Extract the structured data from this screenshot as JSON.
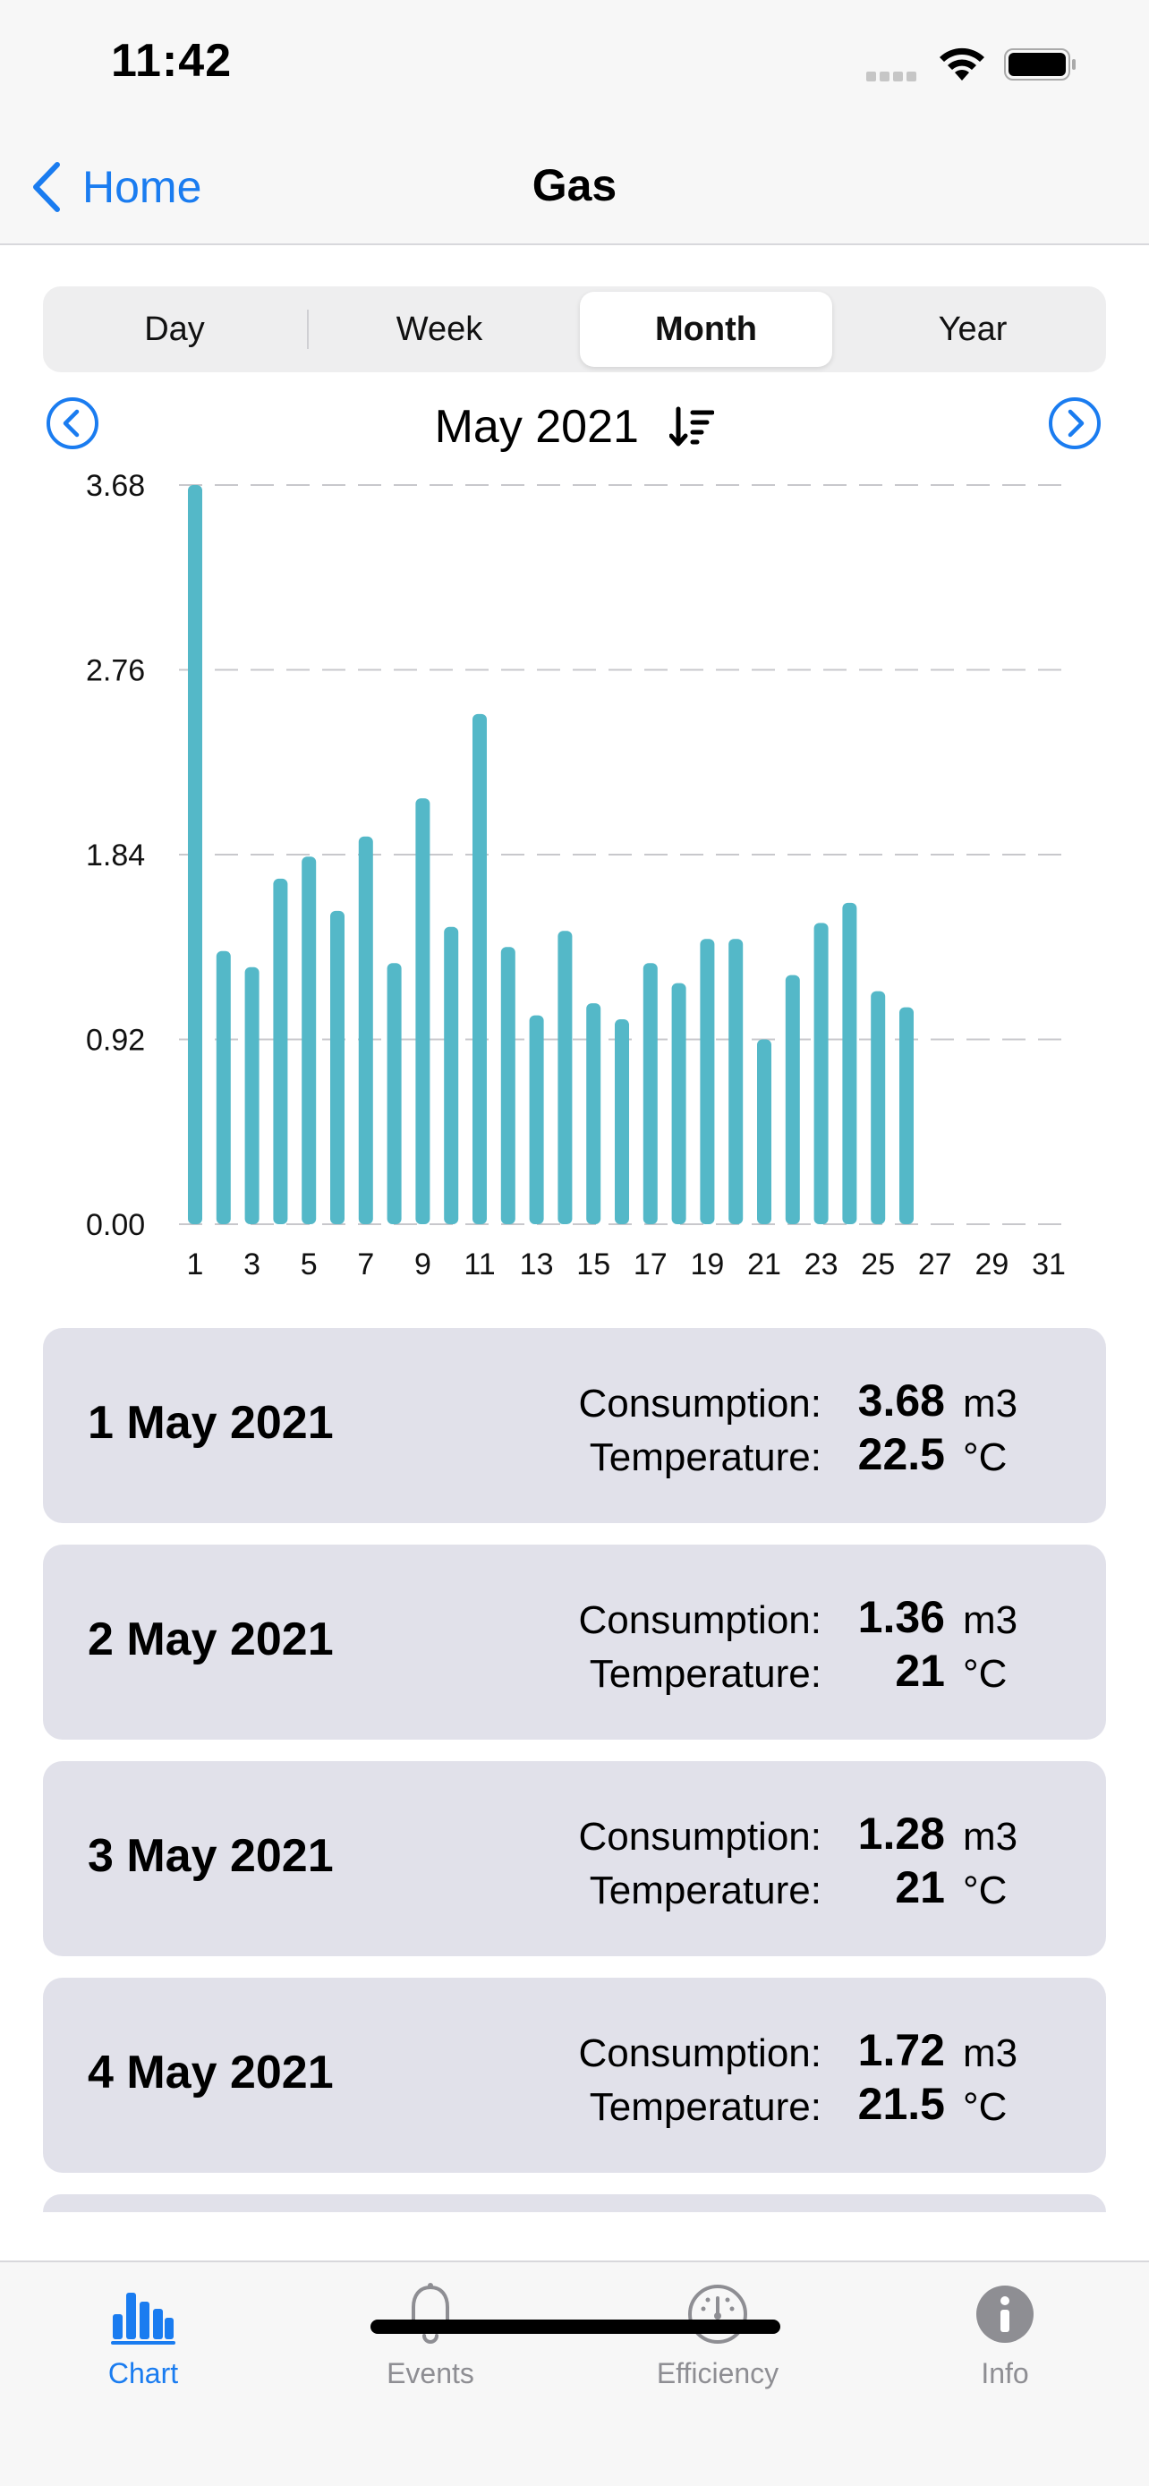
{
  "status_bar": {
    "time": "11:42"
  },
  "nav": {
    "back_label": "Home",
    "title": "Gas"
  },
  "segments": [
    {
      "label": "Day",
      "selected": false
    },
    {
      "label": "Week",
      "selected": false
    },
    {
      "label": "Month",
      "selected": true
    },
    {
      "label": "Year",
      "selected": false
    }
  ],
  "period": {
    "title": "May 2021"
  },
  "chart_data": {
    "type": "bar",
    "title": "",
    "xlabel": "",
    "ylabel": "",
    "x": [
      1,
      2,
      3,
      4,
      5,
      6,
      7,
      8,
      9,
      10,
      11,
      12,
      13,
      14,
      15,
      16,
      17,
      18,
      19,
      20,
      21,
      22,
      23,
      24,
      25,
      26,
      27,
      28,
      29,
      30,
      31
    ],
    "x_ticks": [
      1,
      3,
      5,
      7,
      9,
      11,
      13,
      15,
      17,
      19,
      21,
      23,
      25,
      27,
      29,
      31
    ],
    "y_ticks": [
      "0.00",
      "0.92",
      "1.84",
      "2.76",
      "3.68"
    ],
    "ylim": [
      0,
      3.68
    ],
    "values": [
      3.68,
      1.36,
      1.28,
      1.72,
      1.83,
      1.56,
      1.93,
      1.3,
      2.12,
      1.48,
      2.54,
      1.38,
      1.04,
      1.46,
      1.1,
      1.02,
      1.3,
      1.2,
      1.42,
      1.42,
      0.92,
      1.24,
      1.5,
      1.6,
      1.16,
      1.08,
      null,
      null,
      null,
      null,
      null
    ],
    "bar_color": "#54b8c8",
    "grid": "horizontal-dashed",
    "legend": "none"
  },
  "days": [
    {
      "date": "1 May 2021",
      "consumption_label": "Consumption:",
      "consumption": "3.68",
      "consumption_unit": "m3",
      "temperature_label": "Temperature:",
      "temperature": "22.5",
      "temperature_unit": "°C"
    },
    {
      "date": "2 May 2021",
      "consumption_label": "Consumption:",
      "consumption": "1.36",
      "consumption_unit": "m3",
      "temperature_label": "Temperature:",
      "temperature": "21",
      "temperature_unit": "°C"
    },
    {
      "date": "3 May 2021",
      "consumption_label": "Consumption:",
      "consumption": "1.28",
      "consumption_unit": "m3",
      "temperature_label": "Temperature:",
      "temperature": "21",
      "temperature_unit": "°C"
    },
    {
      "date": "4 May 2021",
      "consumption_label": "Consumption:",
      "consumption": "1.72",
      "consumption_unit": "m3",
      "temperature_label": "Temperature:",
      "temperature": "21.5",
      "temperature_unit": "°C"
    }
  ],
  "tabs": [
    {
      "label": "Chart",
      "icon": "bar-chart-icon",
      "active": true
    },
    {
      "label": "Events",
      "icon": "bell-icon",
      "active": false
    },
    {
      "label": "Efficiency",
      "icon": "gauge-icon",
      "active": false
    },
    {
      "label": "Info",
      "icon": "info-icon",
      "active": false
    }
  ],
  "colors": {
    "accent": "#1a7cf0",
    "bar": "#54b8c8",
    "card": "#e1e1ea",
    "tab_inactive": "#8e8e93"
  }
}
